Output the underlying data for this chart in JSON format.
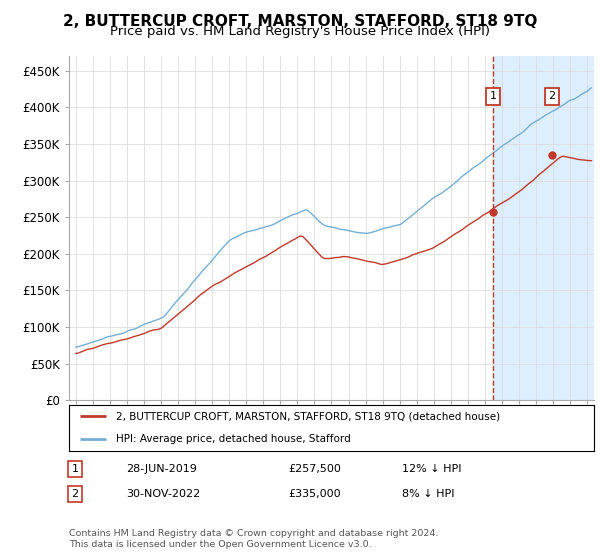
{
  "title": "2, BUTTERCUP CROFT, MARSTON, STAFFORD, ST18 9TQ",
  "subtitle": "Price paid vs. HM Land Registry's House Price Index (HPI)",
  "ylabel_ticks": [
    "£0",
    "£50K",
    "£100K",
    "£150K",
    "£200K",
    "£250K",
    "£300K",
    "£350K",
    "£400K",
    "£450K"
  ],
  "ylim": [
    0,
    470000
  ],
  "xlim_start": 1994.6,
  "xlim_end": 2025.4,
  "sale1_date": 2019.49,
  "sale1_price": 257500,
  "sale1_label": "1",
  "sale2_date": 2022.92,
  "sale2_price": 335000,
  "sale2_label": "2",
  "hpi_color": "#74aed4",
  "price_color": "#c0392b",
  "vline_color": "#c0392b",
  "legend_label1": "2, BUTTERCUP CROFT, MARSTON, STAFFORD, ST18 9TQ (detached house)",
  "legend_label2": "HPI: Average price, detached house, Stafford",
  "footer": "Contains HM Land Registry data © Crown copyright and database right 2024.\nThis data is licensed under the Open Government Licence v3.0.",
  "chart_bg": "#ffffff",
  "shade_color": "#ddeeff",
  "grid_color": "#dddddd",
  "title_fontsize": 11,
  "subtitle_fontsize": 9.5
}
